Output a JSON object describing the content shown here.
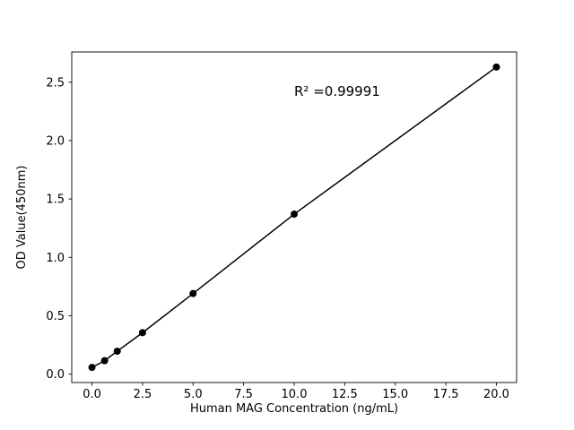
{
  "chart_data": {
    "type": "scatter",
    "title": "",
    "xlabel": "Human MAG Concentration (ng/mL)",
    "ylabel": "OD Value(450nm)",
    "annotation": "R² =0.99991",
    "x": [
      0,
      0.625,
      1.25,
      2.5,
      5,
      10,
      20
    ],
    "y": [
      0.057,
      0.115,
      0.196,
      0.355,
      0.69,
      1.37,
      2.63
    ],
    "xlim": [
      -1,
      21
    ],
    "ylim": [
      -0.072,
      2.759
    ],
    "xticks": [
      0,
      2.5,
      5,
      7.5,
      10,
      12.5,
      15,
      17.5,
      20
    ],
    "xtick_labels": [
      "0.0",
      "2.5",
      "5.0",
      "7.5",
      "10.0",
      "12.5",
      "15.0",
      "17.5",
      "20.0"
    ],
    "yticks": [
      0,
      0.5,
      1.0,
      1.5,
      2.0,
      2.5
    ],
    "ytick_labels": [
      "0.0",
      "0.5",
      "1.0",
      "1.5",
      "2.0",
      "2.5"
    ],
    "grid": false,
    "legend": null,
    "line_color": "#000000",
    "marker_color": "#000000",
    "background": "#ffffff"
  }
}
